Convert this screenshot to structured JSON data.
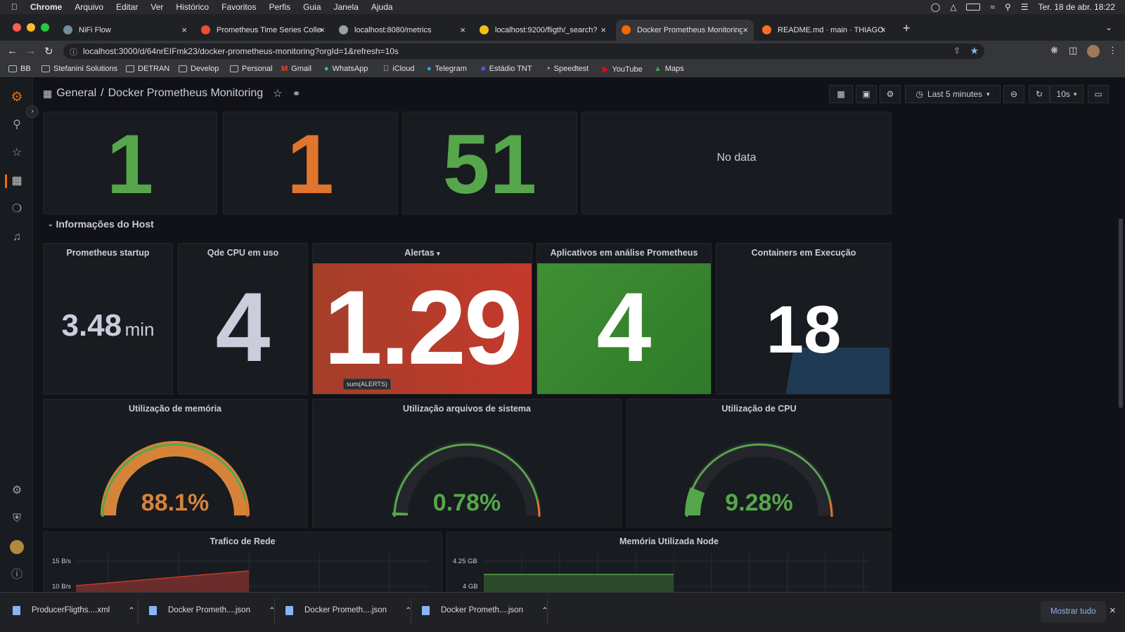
{
  "mac": {
    "apple": "",
    "app": "Chrome",
    "menu": [
      "Arquivo",
      "Editar",
      "Ver",
      "Histórico",
      "Favoritos",
      "Perfis",
      "Guia",
      "Janela",
      "Ajuda"
    ],
    "datetime": "Ter. 18 de abr.  18:22"
  },
  "tabs": [
    {
      "title": "NiFi Flow",
      "color": "#728e9b"
    },
    {
      "title": "Prometheus Time Series Collec",
      "color": "#e6522c"
    },
    {
      "title": "localhost:8080/metrics",
      "color": "#9aa0a6"
    },
    {
      "title": "localhost:9200/fligth/_search?",
      "color": "#f0bf1a"
    },
    {
      "title": "Docker Prometheus Monitoring",
      "color": "#f46800"
    },
    {
      "title": "README.md · main · THIAGO L",
      "color": "#fc6d26"
    }
  ],
  "address": {
    "url": "localhost:3000/d/64nrEIFmk23/docker-prometheus-monitoring?orgId=1&refresh=10s"
  },
  "bookmarks": [
    "BB",
    "Stefanini Solutions",
    "DETRAN",
    "Develop",
    "Personal",
    "Gmail",
    "WhatsApp",
    "iCloud",
    "Telegram",
    "Estádio TNT",
    "Speedtest",
    "YouTube",
    "Maps"
  ],
  "grafana": {
    "breadcrumb_root": "General",
    "breadcrumb_sep": "/",
    "dashboard_title": "Docker Prometheus Monitoring",
    "time_range": "Last 5 minutes",
    "refresh": "10s"
  },
  "top_stats": [
    {
      "value": "1",
      "color": "#56a64b"
    },
    {
      "value": "1",
      "color": "#e0752d"
    },
    {
      "value": "51",
      "color": "#56a64b"
    },
    {
      "value": "No data",
      "color": "#ccccdc"
    }
  ],
  "row_title": "Informações do Host",
  "stats": {
    "startup": {
      "title": "Prometheus startup",
      "value": "3.48",
      "unit": "min"
    },
    "cpu": {
      "title": "Qde CPU em uso",
      "value": "4"
    },
    "alerts": {
      "title": "Alertas",
      "value": "1.29",
      "tooltip": "sum(ALERTS)",
      "bg": "#c4392c"
    },
    "apps": {
      "title": "Aplicativos em análise Prometheus",
      "value": "4",
      "bg": "#37872d"
    },
    "containers": {
      "title": "Containers em Execução",
      "value": "18"
    }
  },
  "gauges": [
    {
      "title": "Utilização de memória",
      "value": "88.1%",
      "fraction": 0.881,
      "color": "#d6833a"
    },
    {
      "title": "Utilização arquivos de sistema",
      "value": "0.78%",
      "fraction": 0.0078,
      "color": "#56a64b"
    },
    {
      "title": "Utilização de CPU",
      "value": "9.28%",
      "fraction": 0.0928,
      "color": "#56a64b"
    }
  ],
  "charts": {
    "network": {
      "title": "Trafico de Rede",
      "ticks": [
        "15 B/s",
        "10 B/s"
      ]
    },
    "node_mem": {
      "title": "Memória Utilizada Node",
      "ticks": [
        "4.25 GB",
        "4 GB"
      ]
    }
  },
  "downloads": {
    "files": [
      "ProducerFligths....xml",
      "Docker Prometh....json",
      "Docker Prometh....json",
      "Docker Prometh....json"
    ],
    "show_all": "Mostrar tudo"
  }
}
